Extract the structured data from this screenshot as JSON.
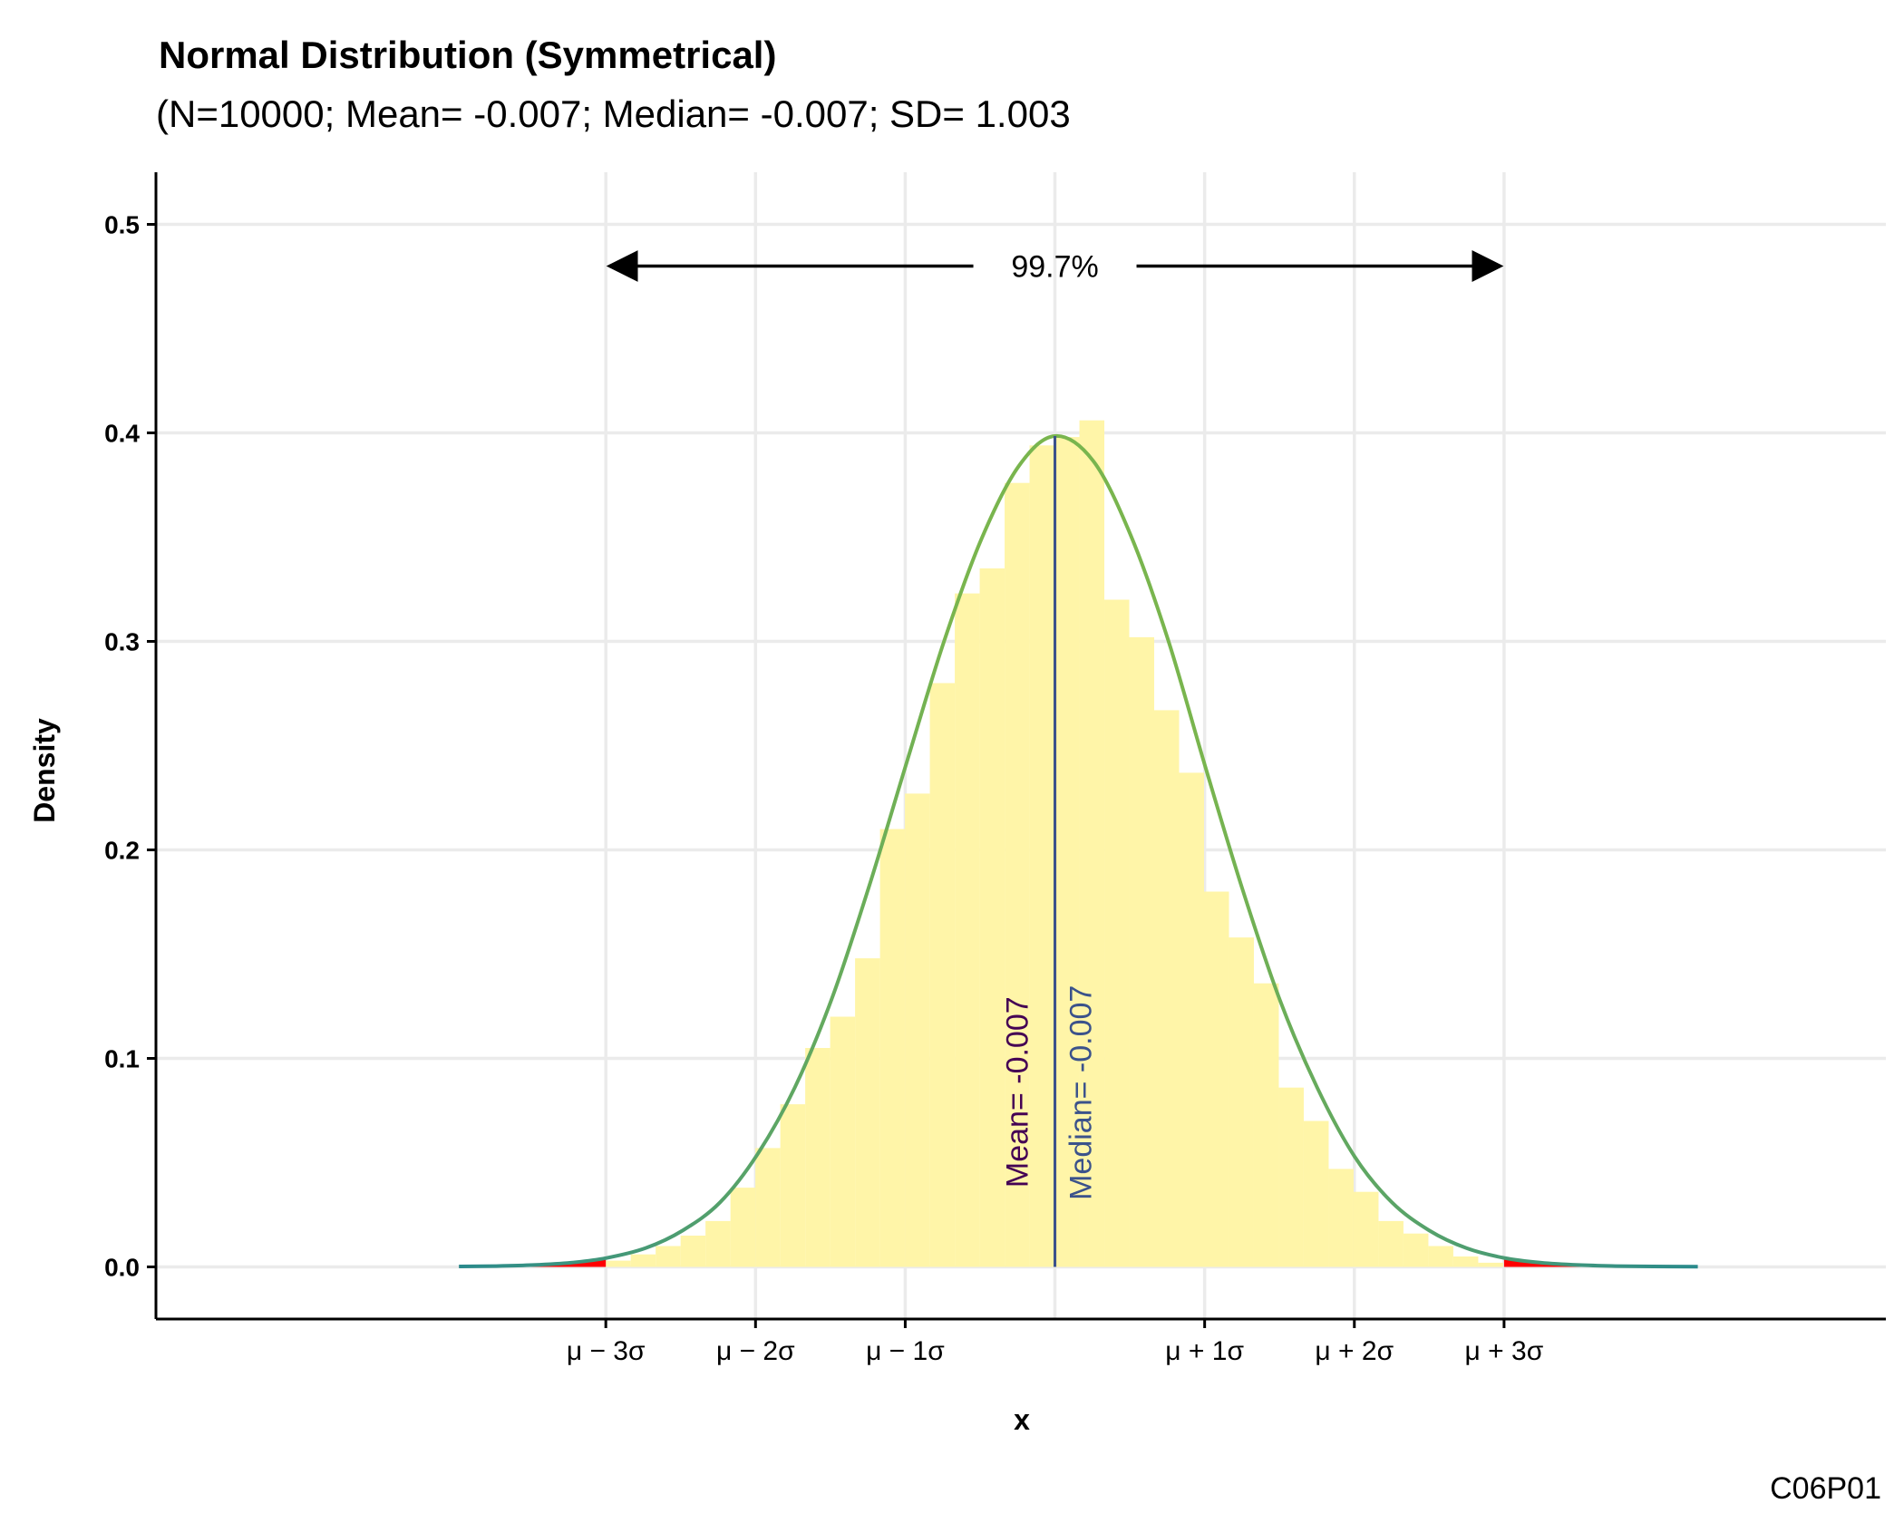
{
  "chart_data": {
    "type": "histogram",
    "title": "Normal Distribution (Symmetrical)",
    "subtitle": "(N=10000; Mean= -0.007; Median= -0.007; SD= 1.003",
    "xlabel": "x",
    "ylabel": "Density",
    "caption": "C06P01",
    "ylim": [
      -0.025,
      0.525
    ],
    "xlim": [
      -6.03,
      5.56
    ],
    "y_ticks": [
      0.0,
      0.1,
      0.2,
      0.3,
      0.4,
      0.5
    ],
    "y_tick_labels": [
      "0.0",
      "0.1",
      "0.2",
      "0.3",
      "0.4",
      "0.5"
    ],
    "x_ticks": [
      -3.016,
      -2.013,
      -1.01,
      0.996,
      1.999,
      3.002
    ],
    "x_tick_labels": [
      "μ − 3σ",
      "μ − 2σ",
      "μ − 1σ",
      "μ + 1σ",
      "μ + 2σ",
      "μ + 3σ"
    ],
    "grid": true,
    "mean": -0.007,
    "median": -0.007,
    "sd": 1.003,
    "n": 10000,
    "mean_label": "Mean= -0.007",
    "median_label": "Median= -0.007",
    "span_label": "99.7%",
    "span_range": [
      -3.016,
      3.002
    ],
    "span_y": 0.48,
    "histogram": {
      "bin_width": 0.167,
      "bin_starts": [
        -3.016,
        -2.849,
        -2.682,
        -2.515,
        -2.348,
        -2.181,
        -2.014,
        -1.847,
        -1.68,
        -1.513,
        -1.346,
        -1.179,
        -1.012,
        -0.845,
        -0.678,
        -0.511,
        -0.344,
        -0.177,
        -0.01,
        0.157,
        0.324,
        0.491,
        0.658,
        0.825,
        0.992,
        1.159,
        1.326,
        1.493,
        1.66,
        1.827,
        1.994,
        2.161,
        2.328,
        2.495,
        2.662,
        2.829
      ],
      "values": [
        0.003,
        0.006,
        0.01,
        0.015,
        0.022,
        0.038,
        0.057,
        0.078,
        0.105,
        0.12,
        0.148,
        0.21,
        0.227,
        0.28,
        0.323,
        0.335,
        0.376,
        0.394,
        0.398,
        0.406,
        0.32,
        0.302,
        0.267,
        0.237,
        0.18,
        0.158,
        0.136,
        0.086,
        0.07,
        0.047,
        0.036,
        0.022,
        0.016,
        0.01,
        0.005,
        0.002
      ]
    },
    "density": {
      "x": [
        -4.0,
        -3.75,
        -3.5,
        -3.25,
        -3.016,
        -2.75,
        -2.5,
        -2.25,
        -2.0,
        -1.75,
        -1.5,
        -1.25,
        -1.0,
        -0.75,
        -0.5,
        -0.25,
        -0.007,
        0.25,
        0.5,
        0.75,
        1.0,
        1.25,
        1.5,
        1.75,
        2.0,
        2.25,
        2.5,
        2.75,
        3.002,
        3.25,
        3.5,
        3.75,
        4.0,
        4.3
      ],
      "y": [
        0.0002,
        0.0004,
        0.0009,
        0.002,
        0.0042,
        0.009,
        0.0175,
        0.031,
        0.054,
        0.086,
        0.129,
        0.183,
        0.242,
        0.3,
        0.349,
        0.384,
        0.3985,
        0.3865,
        0.351,
        0.301,
        0.24,
        0.181,
        0.128,
        0.086,
        0.053,
        0.031,
        0.0175,
        0.009,
        0.0043,
        0.002,
        0.0009,
        0.0004,
        0.0002,
        0.0001
      ]
    },
    "colors": {
      "histogram_fill": "#fff5a8",
      "density_line_start": "#2a8a8c",
      "density_line_end": "#79b54e",
      "tail_fill": "#ff0000",
      "mean_line": "#440154",
      "median_line": "#3b528b",
      "grid": "#ebebeb",
      "axis": "#000000"
    }
  }
}
